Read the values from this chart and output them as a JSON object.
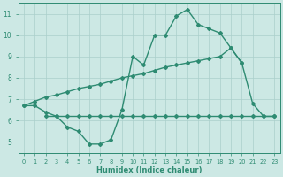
{
  "x": [
    0,
    1,
    2,
    3,
    4,
    5,
    6,
    7,
    8,
    9,
    10,
    11,
    12,
    13,
    14,
    15,
    16,
    17,
    18,
    19,
    20,
    21,
    22,
    23
  ],
  "y_curve": [
    6.7,
    6.7,
    6.4,
    6.2,
    5.7,
    5.5,
    4.9,
    4.9,
    5.1,
    6.5,
    9.0,
    8.6,
    10.0,
    10.0,
    10.9,
    11.2,
    10.5,
    10.3,
    10.1,
    9.4,
    8.7,
    6.8,
    6.2,
    6.2
  ],
  "y_upper": [
    6.7,
    6.9,
    7.1,
    7.2,
    7.35,
    7.5,
    7.6,
    7.7,
    7.85,
    8.0,
    8.1,
    8.2,
    8.35,
    8.5,
    8.6,
    8.7,
    8.8,
    8.9,
    9.0,
    9.4,
    8.7,
    null,
    null,
    null
  ],
  "y_lower": [
    null,
    null,
    6.2,
    6.2,
    6.2,
    6.2,
    6.2,
    6.2,
    6.2,
    6.2,
    6.2,
    6.2,
    6.2,
    6.2,
    6.2,
    6.2,
    6.2,
    6.2,
    6.2,
    6.2,
    6.2,
    6.2,
    6.2,
    6.2
  ],
  "color": "#2e8b72",
  "bg_color": "#cce8e4",
  "grid_color": "#aacfcb",
  "xlabel": "Humidex (Indice chaleur)",
  "ylim": [
    4.5,
    11.5
  ],
  "xlim": [
    -0.5,
    23.5
  ],
  "yticks": [
    5,
    6,
    7,
    8,
    9,
    10,
    11
  ],
  "xticks": [
    0,
    1,
    2,
    3,
    4,
    5,
    6,
    7,
    8,
    9,
    10,
    11,
    12,
    13,
    14,
    15,
    16,
    17,
    18,
    19,
    20,
    21,
    22,
    23
  ],
  "linewidth": 1.0,
  "markersize": 2.0
}
